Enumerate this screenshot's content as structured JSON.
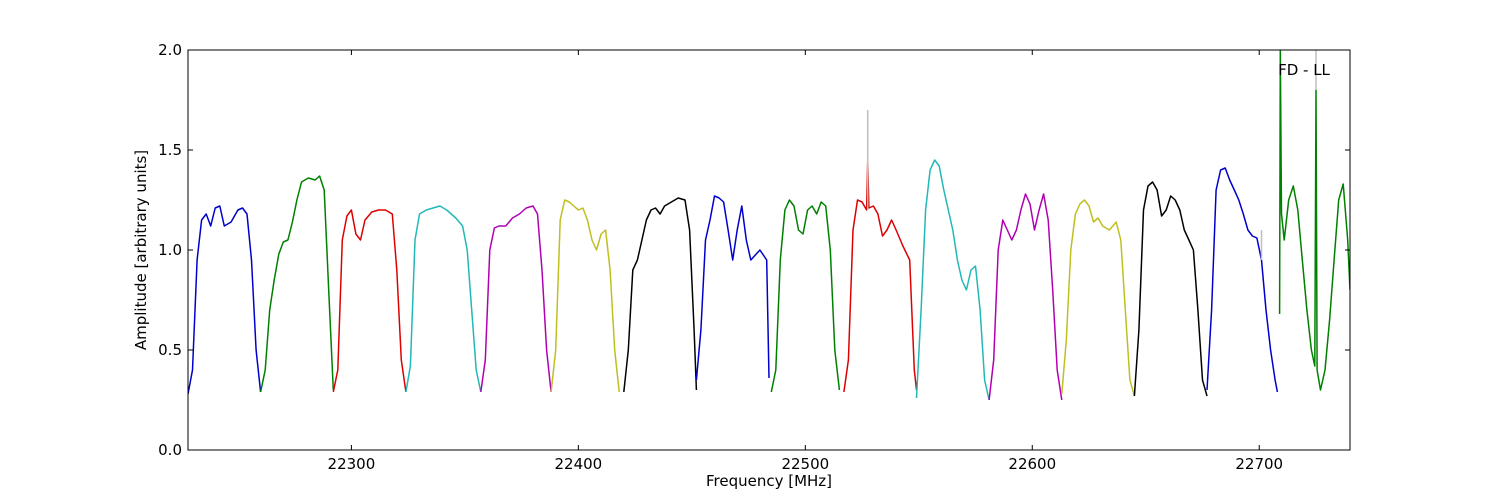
{
  "chart_data": {
    "type": "line",
    "title": "",
    "xlabel": "Frequency [MHz]",
    "ylabel": "Amplitude [arbitrary units]",
    "xlim": [
      22228,
      22740
    ],
    "ylim": [
      0.0,
      2.0
    ],
    "xticks": [
      22300,
      22400,
      22500,
      22600,
      22700
    ],
    "xtick_labels": [
      "22300",
      "22400",
      "22500",
      "22600",
      "22700"
    ],
    "yticks": [
      0.0,
      0.5,
      1.0,
      1.5,
      2.0
    ],
    "ytick_labels": [
      "0.0",
      "0.5",
      "1.0",
      "1.5",
      "2.0"
    ],
    "grid": false,
    "annotation": "FD - LL",
    "series": [
      {
        "color": "#0000cc",
        "points": [
          [
            22228,
            0.28
          ],
          [
            22230,
            0.4
          ],
          [
            22232,
            0.95
          ],
          [
            22234,
            1.15
          ],
          [
            22236,
            1.18
          ],
          [
            22238,
            1.12
          ],
          [
            22240,
            1.21
          ],
          [
            22242,
            1.22
          ],
          [
            22244,
            1.12
          ],
          [
            22247,
            1.14
          ],
          [
            22250,
            1.2
          ],
          [
            22252,
            1.21
          ],
          [
            22254,
            1.18
          ],
          [
            22256,
            0.95
          ],
          [
            22258,
            0.5
          ],
          [
            22260,
            0.29
          ]
        ]
      },
      {
        "color": "#008000",
        "points": [
          [
            22260,
            0.29
          ],
          [
            22262,
            0.4
          ],
          [
            22264,
            0.7
          ],
          [
            22266,
            0.85
          ],
          [
            22268,
            0.98
          ],
          [
            22270,
            1.04
          ],
          [
            22272,
            1.05
          ],
          [
            22274,
            1.14
          ],
          [
            22276,
            1.25
          ],
          [
            22278,
            1.34
          ],
          [
            22281,
            1.36
          ],
          [
            22284,
            1.35
          ],
          [
            22286,
            1.37
          ],
          [
            22288,
            1.3
          ],
          [
            22290,
            0.8
          ],
          [
            22292,
            0.3
          ]
        ]
      },
      {
        "color": "#dd0000",
        "points": [
          [
            22292,
            0.29
          ],
          [
            22294,
            0.4
          ],
          [
            22296,
            1.05
          ],
          [
            22298,
            1.17
          ],
          [
            22300,
            1.2
          ],
          [
            22302,
            1.08
          ],
          [
            22304,
            1.05
          ],
          [
            22306,
            1.15
          ],
          [
            22309,
            1.19
          ],
          [
            22312,
            1.2
          ],
          [
            22315,
            1.2
          ],
          [
            22318,
            1.18
          ],
          [
            22320,
            0.9
          ],
          [
            22322,
            0.45
          ],
          [
            22324,
            0.29
          ]
        ]
      },
      {
        "color": "#22b8b8",
        "points": [
          [
            22324,
            0.29
          ],
          [
            22326,
            0.42
          ],
          [
            22328,
            1.05
          ],
          [
            22330,
            1.18
          ],
          [
            22333,
            1.2
          ],
          [
            22336,
            1.21
          ],
          [
            22339,
            1.22
          ],
          [
            22342,
            1.2
          ],
          [
            22346,
            1.16
          ],
          [
            22349,
            1.12
          ],
          [
            22351,
            1.0
          ],
          [
            22353,
            0.7
          ],
          [
            22355,
            0.4
          ],
          [
            22357,
            0.29
          ]
        ]
      },
      {
        "color": "#b000b0",
        "points": [
          [
            22357,
            0.29
          ],
          [
            22359,
            0.45
          ],
          [
            22361,
            1.0
          ],
          [
            22363,
            1.11
          ],
          [
            22365,
            1.12
          ],
          [
            22368,
            1.12
          ],
          [
            22371,
            1.16
          ],
          [
            22374,
            1.18
          ],
          [
            22377,
            1.21
          ],
          [
            22380,
            1.22
          ],
          [
            22382,
            1.18
          ],
          [
            22384,
            0.9
          ],
          [
            22386,
            0.5
          ],
          [
            22388,
            0.29
          ]
        ]
      },
      {
        "color": "#bfbf20",
        "points": [
          [
            22388,
            0.29
          ],
          [
            22390,
            0.5
          ],
          [
            22392,
            1.15
          ],
          [
            22394,
            1.25
          ],
          [
            22396,
            1.24
          ],
          [
            22398,
            1.22
          ],
          [
            22400,
            1.2
          ],
          [
            22402,
            1.21
          ],
          [
            22404,
            1.15
          ],
          [
            22406,
            1.05
          ],
          [
            22408,
            1.0
          ],
          [
            22410,
            1.08
          ],
          [
            22412,
            1.1
          ],
          [
            22414,
            0.9
          ],
          [
            22416,
            0.5
          ],
          [
            22418,
            0.29
          ]
        ]
      },
      {
        "color": "#000000",
        "points": [
          [
            22420,
            0.29
          ],
          [
            22422,
            0.5
          ],
          [
            22424,
            0.9
          ],
          [
            22426,
            0.95
          ],
          [
            22428,
            1.05
          ],
          [
            22430,
            1.15
          ],
          [
            22432,
            1.2
          ],
          [
            22434,
            1.21
          ],
          [
            22436,
            1.18
          ],
          [
            22438,
            1.22
          ],
          [
            22441,
            1.24
          ],
          [
            22444,
            1.26
          ],
          [
            22447,
            1.25
          ],
          [
            22449,
            1.1
          ],
          [
            22451,
            0.6
          ],
          [
            22452,
            0.3
          ]
        ]
      },
      {
        "color": "#0000cc",
        "points": [
          [
            22452,
            0.35
          ],
          [
            22454,
            0.6
          ],
          [
            22456,
            1.05
          ],
          [
            22458,
            1.15
          ],
          [
            22460,
            1.27
          ],
          [
            22462,
            1.26
          ],
          [
            22464,
            1.24
          ],
          [
            22466,
            1.1
          ],
          [
            22468,
            0.95
          ],
          [
            22470,
            1.1
          ],
          [
            22472,
            1.22
          ],
          [
            22474,
            1.05
          ],
          [
            22476,
            0.95
          ],
          [
            22480,
            1.0
          ],
          [
            22483,
            0.95
          ],
          [
            22484,
            0.36
          ]
        ]
      },
      {
        "color": "#008000",
        "points": [
          [
            22485,
            0.29
          ],
          [
            22487,
            0.4
          ],
          [
            22489,
            0.95
          ],
          [
            22491,
            1.2
          ],
          [
            22493,
            1.25
          ],
          [
            22495,
            1.22
          ],
          [
            22497,
            1.1
          ],
          [
            22499,
            1.08
          ],
          [
            22501,
            1.2
          ],
          [
            22503,
            1.22
          ],
          [
            22505,
            1.18
          ],
          [
            22507,
            1.24
          ],
          [
            22509,
            1.22
          ],
          [
            22511,
            1.0
          ],
          [
            22513,
            0.5
          ],
          [
            22515,
            0.3
          ]
        ]
      },
      {
        "color": "#dd0000",
        "points": [
          [
            22517,
            0.29
          ],
          [
            22519,
            0.45
          ],
          [
            22521,
            1.1
          ],
          [
            22523,
            1.25
          ],
          [
            22525,
            1.24
          ],
          [
            22526,
            1.22
          ],
          [
            22527,
            1.2
          ],
          [
            22527.5,
            1.44
          ],
          [
            22528,
            1.21
          ],
          [
            22530,
            1.22
          ],
          [
            22532,
            1.18
          ],
          [
            22534,
            1.07
          ],
          [
            22536,
            1.1
          ],
          [
            22538,
            1.15
          ],
          [
            22540,
            1.1
          ],
          [
            22543,
            1.02
          ],
          [
            22546,
            0.95
          ],
          [
            22548,
            0.4
          ],
          [
            22549,
            0.3
          ]
        ]
      },
      {
        "color": "#22b8b8",
        "points": [
          [
            22549,
            0.26
          ],
          [
            22551,
            0.7
          ],
          [
            22553,
            1.2
          ],
          [
            22555,
            1.4
          ],
          [
            22557,
            1.45
          ],
          [
            22559,
            1.42
          ],
          [
            22561,
            1.3
          ],
          [
            22563,
            1.2
          ],
          [
            22565,
            1.1
          ],
          [
            22567,
            0.95
          ],
          [
            22569,
            0.85
          ],
          [
            22571,
            0.8
          ],
          [
            22573,
            0.9
          ],
          [
            22575,
            0.92
          ],
          [
            22577,
            0.7
          ],
          [
            22579,
            0.35
          ],
          [
            22581,
            0.25
          ]
        ]
      },
      {
        "color": "#b000b0",
        "points": [
          [
            22581,
            0.25
          ],
          [
            22583,
            0.45
          ],
          [
            22585,
            1.0
          ],
          [
            22587,
            1.15
          ],
          [
            22589,
            1.1
          ],
          [
            22591,
            1.05
          ],
          [
            22593,
            1.1
          ],
          [
            22595,
            1.2
          ],
          [
            22597,
            1.28
          ],
          [
            22599,
            1.23
          ],
          [
            22601,
            1.1
          ],
          [
            22603,
            1.2
          ],
          [
            22605,
            1.28
          ],
          [
            22607,
            1.15
          ],
          [
            22609,
            0.8
          ],
          [
            22611,
            0.4
          ],
          [
            22613,
            0.25
          ]
        ]
      },
      {
        "color": "#bfbf20",
        "points": [
          [
            22613,
            0.28
          ],
          [
            22615,
            0.55
          ],
          [
            22617,
            1.0
          ],
          [
            22619,
            1.18
          ],
          [
            22621,
            1.23
          ],
          [
            22623,
            1.25
          ],
          [
            22625,
            1.22
          ],
          [
            22627,
            1.14
          ],
          [
            22629,
            1.16
          ],
          [
            22631,
            1.12
          ],
          [
            22634,
            1.1
          ],
          [
            22637,
            1.14
          ],
          [
            22639,
            1.05
          ],
          [
            22641,
            0.7
          ],
          [
            22643,
            0.35
          ],
          [
            22645,
            0.27
          ]
        ]
      },
      {
        "color": "#000000",
        "points": [
          [
            22645,
            0.27
          ],
          [
            22647,
            0.6
          ],
          [
            22649,
            1.2
          ],
          [
            22651,
            1.32
          ],
          [
            22653,
            1.34
          ],
          [
            22655,
            1.3
          ],
          [
            22657,
            1.17
          ],
          [
            22659,
            1.2
          ],
          [
            22661,
            1.27
          ],
          [
            22663,
            1.25
          ],
          [
            22665,
            1.2
          ],
          [
            22667,
            1.1
          ],
          [
            22669,
            1.05
          ],
          [
            22671,
            1.0
          ],
          [
            22673,
            0.7
          ],
          [
            22675,
            0.35
          ],
          [
            22677,
            0.27
          ]
        ]
      },
      {
        "color": "#0000cc",
        "points": [
          [
            22677,
            0.3
          ],
          [
            22679,
            0.7
          ],
          [
            22681,
            1.3
          ],
          [
            22683,
            1.4
          ],
          [
            22685,
            1.41
          ],
          [
            22687,
            1.35
          ],
          [
            22689,
            1.3
          ],
          [
            22691,
            1.25
          ],
          [
            22693,
            1.18
          ],
          [
            22695,
            1.1
          ],
          [
            22697,
            1.07
          ],
          [
            22699,
            1.06
          ],
          [
            22701,
            0.95
          ],
          [
            22703,
            0.7
          ],
          [
            22705,
            0.5
          ],
          [
            22707,
            0.35
          ],
          [
            22708,
            0.29
          ]
        ]
      },
      {
        "color": "#008000",
        "points": [
          [
            22709,
            0.68
          ],
          [
            22709.3,
            2.0
          ],
          [
            22709.8,
            1.18
          ],
          [
            22711,
            1.05
          ],
          [
            22713,
            1.25
          ],
          [
            22715,
            1.32
          ],
          [
            22717,
            1.2
          ],
          [
            22719,
            0.95
          ],
          [
            22721,
            0.7
          ],
          [
            22723,
            0.5
          ],
          [
            22724.5,
            0.42
          ],
          [
            22725,
            1.8
          ],
          [
            22725.5,
            0.4
          ],
          [
            22727,
            0.3
          ],
          [
            22729,
            0.4
          ],
          [
            22731,
            0.65
          ],
          [
            22733,
            0.95
          ],
          [
            22735,
            1.25
          ],
          [
            22737,
            1.33
          ],
          [
            22739,
            1.05
          ],
          [
            22740,
            0.8
          ]
        ]
      },
      {
        "color": "#bfbfbf",
        "points": [
          [
            22527.5,
            1.2
          ],
          [
            22527.5,
            1.7
          ]
        ]
      },
      {
        "color": "#bfbfbf",
        "points": [
          [
            22701,
            0.95
          ],
          [
            22701,
            1.1
          ]
        ]
      },
      {
        "color": "#bfbfbf",
        "points": [
          [
            22725,
            1.8
          ],
          [
            22725,
            2.0
          ]
        ]
      }
    ]
  }
}
